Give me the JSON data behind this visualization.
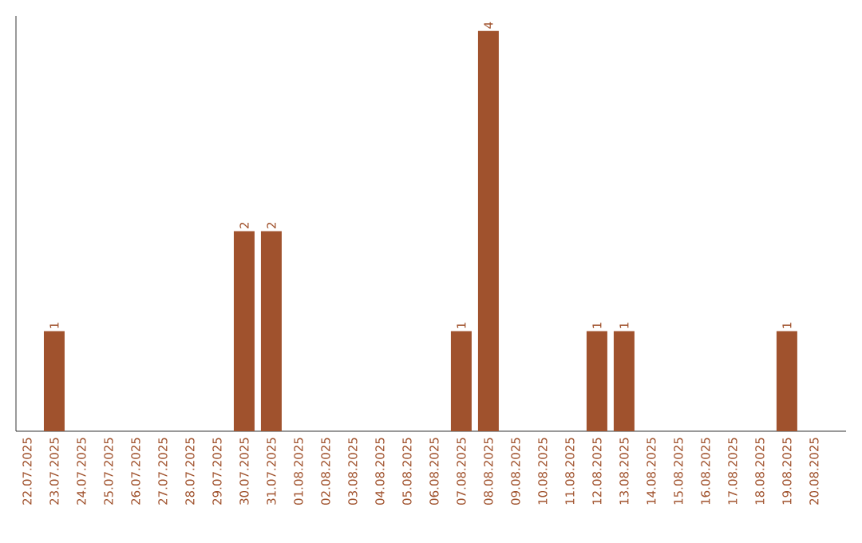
{
  "chart_data": {
    "type": "bar",
    "categories": [
      "22.07.2025",
      "23.07.2025",
      "24.07.2025",
      "25.07.2025",
      "26.07.2025",
      "27.07.2025",
      "28.07.2025",
      "29.07.2025",
      "30.07.2025",
      "31.07.2025",
      "01.08.2025",
      "02.08.2025",
      "03.08.2025",
      "04.08.2025",
      "05.08.2025",
      "06.08.2025",
      "07.08.2025",
      "08.08.2025",
      "09.08.2025",
      "10.08.2025",
      "11.08.2025",
      "12.08.2025",
      "13.08.2025",
      "14.08.2025",
      "15.08.2025",
      "16.08.2025",
      "17.08.2025",
      "18.08.2025",
      "19.08.2025",
      "20.08.2025"
    ],
    "values": [
      0,
      1,
      0,
      0,
      0,
      0,
      0,
      0,
      2,
      2,
      0,
      0,
      0,
      0,
      0,
      0,
      1,
      4,
      0,
      0,
      0,
      1,
      1,
      0,
      0,
      0,
      0,
      0,
      1,
      0
    ],
    "value_labels": [
      null,
      "1",
      null,
      null,
      null,
      null,
      null,
      null,
      "2",
      "2",
      null,
      null,
      null,
      null,
      null,
      null,
      "1",
      "4",
      null,
      null,
      null,
      "1",
      "1",
      null,
      null,
      null,
      null,
      null,
      "1",
      null
    ],
    "color": "#a0522d",
    "ylim": [
      0,
      4.15
    ],
    "tick_labels": "x",
    "grid": false
  }
}
